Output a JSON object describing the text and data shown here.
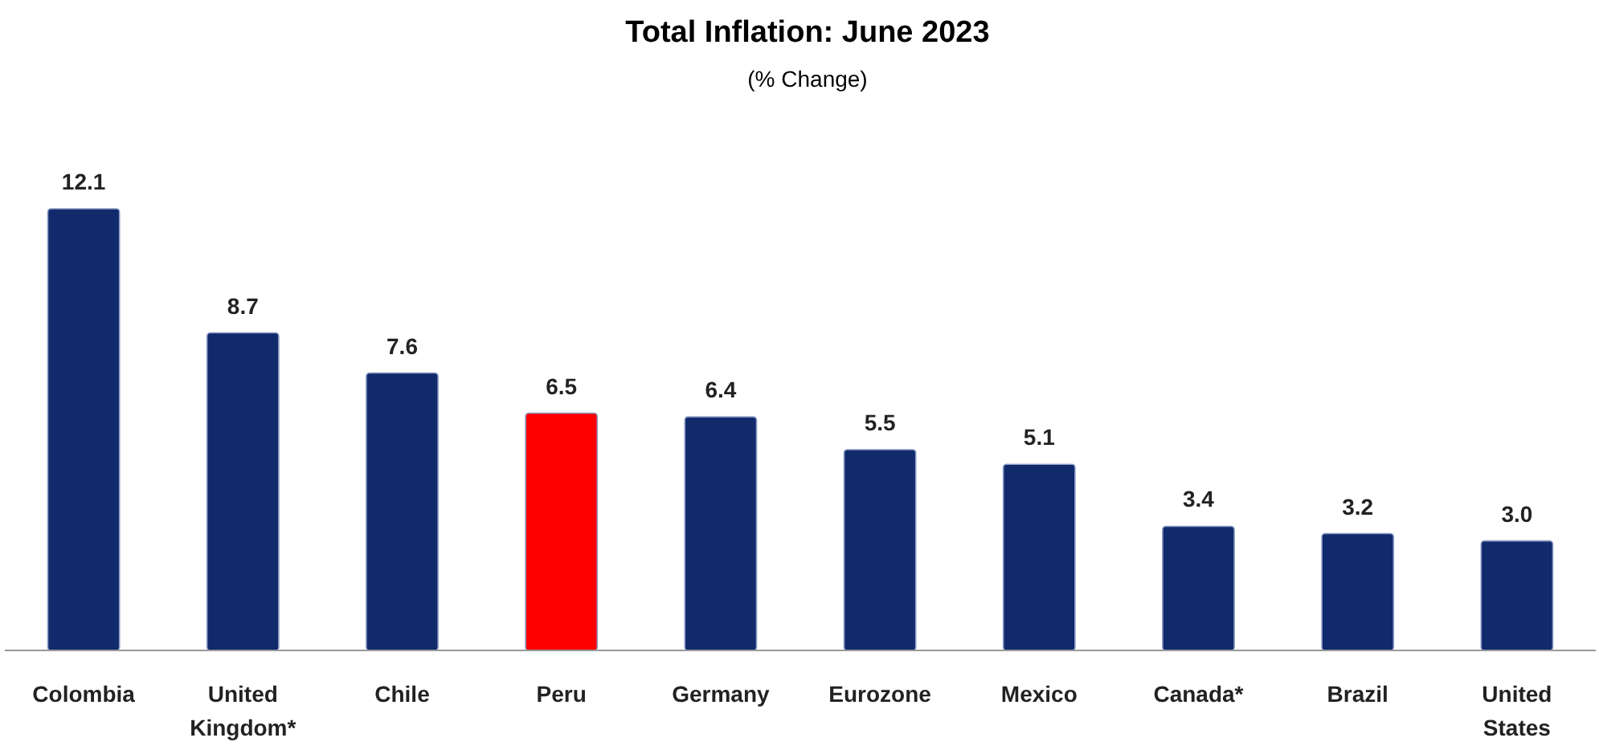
{
  "chart_data": {
    "type": "bar",
    "title": "Total Inflation: June 2023",
    "subtitle": "(% Change)",
    "categories": [
      "Colombia",
      "United Kingdom*",
      "Chile",
      "Peru",
      "Germany",
      "Eurozone",
      "Mexico",
      "Canada*",
      "Brazil",
      "United States"
    ],
    "values": [
      12.1,
      8.7,
      7.6,
      6.5,
      6.4,
      5.5,
      5.1,
      3.4,
      3.2,
      3.0
    ],
    "value_labels": [
      "12.1",
      "8.7",
      "7.6",
      "6.5",
      "6.4",
      "5.5",
      "5.1",
      "3.4",
      "3.2",
      "3.0"
    ],
    "colors": [
      "#102a6b",
      "#102a6b",
      "#102a6b",
      "#ff0000",
      "#102a6b",
      "#102a6b",
      "#102a6b",
      "#102a6b",
      "#102a6b",
      "#102a6b"
    ]
  }
}
